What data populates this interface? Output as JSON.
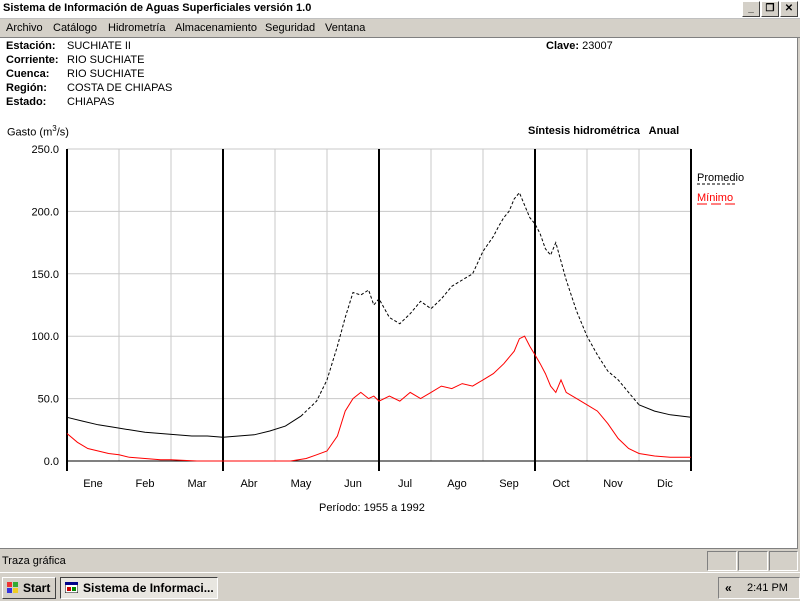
{
  "window": {
    "title": "Sistema de Información de Aguas Superficiales  versión 1.0",
    "buttons": {
      "minimize": "_",
      "maximize": "❐",
      "close": "✕"
    }
  },
  "menu": [
    "Archivo",
    "Catálogo",
    "Hidrometría",
    "Almacenamiento",
    "Seguridad",
    "Ventana"
  ],
  "station": {
    "estacion_label": "Estación:",
    "estacion": "SUCHIATE II",
    "corriente_label": "Corriente:",
    "corriente": "RIO SUCHIATE",
    "cuenca_label": "Cuenca:",
    "cuenca": "RIO SUCHIATE",
    "region_label": "Región:",
    "region": "COSTA DE CHIAPAS",
    "estado_label": "Estado:",
    "estado": "CHIAPAS",
    "clave_label": "Clave:",
    "clave": "23007"
  },
  "chart_header": {
    "ylabel_prefix": "Gasto (m",
    "ylabel_exp": "3",
    "ylabel_suffix": "/s)",
    "synthesis": "Síntesis hidrométrica   Anual",
    "periodo_label": "Período:",
    "periodo": "1955 a 1992"
  },
  "chart_data": {
    "type": "line",
    "ylabel": "Gasto (m3/s)",
    "ylim": [
      0,
      250
    ],
    "yticks": [
      "0.0",
      "50.0",
      "100.0",
      "150.0",
      "200.0",
      "250.0"
    ],
    "categories": [
      "Ene",
      "Feb",
      "Mar",
      "Abr",
      "May",
      "Jun",
      "Jul",
      "Ago",
      "Sep",
      "Oct",
      "Nov",
      "Dic"
    ],
    "series": [
      {
        "name": "Promedio",
        "color": "#000000",
        "style": "dashed-upper-solid-lower",
        "x": [
          0,
          0.3,
          0.6,
          0.9,
          1.2,
          1.5,
          1.8,
          2.1,
          2.4,
          2.7,
          3.0,
          3.3,
          3.6,
          3.9,
          4.2,
          4.5,
          4.8,
          5.0,
          5.2,
          5.35,
          5.5,
          5.65,
          5.8,
          5.9,
          6.0,
          6.2,
          6.4,
          6.6,
          6.8,
          7.0,
          7.2,
          7.4,
          7.6,
          7.8,
          8.0,
          8.2,
          8.3,
          8.4,
          8.5,
          8.6,
          8.7,
          8.8,
          8.9,
          9.0,
          9.1,
          9.2,
          9.3,
          9.4,
          9.5,
          9.6,
          9.8,
          10.0,
          10.2,
          10.4,
          10.6,
          10.8,
          11.0,
          11.3,
          11.6,
          12.0
        ],
        "values": [
          35,
          32,
          29,
          27,
          25,
          23,
          22,
          21,
          20,
          20,
          19,
          20,
          21,
          24,
          28,
          36,
          48,
          65,
          92,
          115,
          135,
          133,
          137,
          125,
          130,
          115,
          110,
          118,
          128,
          122,
          130,
          140,
          145,
          150,
          168,
          180,
          188,
          195,
          200,
          210,
          215,
          205,
          195,
          190,
          182,
          170,
          165,
          175,
          160,
          145,
          120,
          100,
          85,
          72,
          65,
          55,
          45,
          40,
          37,
          35
        ]
      },
      {
        "name": "Mínimo",
        "color": "#ff0000",
        "style": "solid",
        "x": [
          0,
          0.2,
          0.4,
          0.6,
          0.8,
          1.0,
          1.2,
          1.5,
          1.8,
          2.0,
          2.5,
          3.0,
          3.5,
          3.8,
          4.0,
          4.3,
          4.6,
          4.8,
          5.0,
          5.2,
          5.35,
          5.5,
          5.65,
          5.8,
          5.9,
          6.0,
          6.2,
          6.4,
          6.6,
          6.8,
          7.0,
          7.2,
          7.4,
          7.6,
          7.8,
          8.0,
          8.2,
          8.4,
          8.6,
          8.7,
          8.8,
          8.9,
          9.0,
          9.1,
          9.2,
          9.3,
          9.4,
          9.5,
          9.6,
          9.8,
          10.0,
          10.2,
          10.4,
          10.6,
          10.8,
          11.0,
          11.3,
          11.6,
          12.0
        ],
        "values": [
          22,
          15,
          10,
          8,
          6,
          5,
          3,
          2,
          1,
          1,
          0,
          0,
          0,
          0,
          0,
          0,
          2,
          5,
          8,
          20,
          40,
          50,
          55,
          50,
          52,
          48,
          52,
          48,
          55,
          50,
          55,
          60,
          58,
          62,
          60,
          65,
          70,
          78,
          88,
          98,
          100,
          92,
          85,
          78,
          70,
          60,
          55,
          65,
          55,
          50,
          45,
          40,
          30,
          18,
          10,
          6,
          4,
          3,
          3
        ]
      }
    ],
    "legend": "right"
  },
  "status": {
    "text": "Traza gráfica"
  },
  "taskbar": {
    "start": "Start",
    "task": "Sistema de Informaci...",
    "tray_chevron": "«",
    "clock": "2:41 PM"
  }
}
